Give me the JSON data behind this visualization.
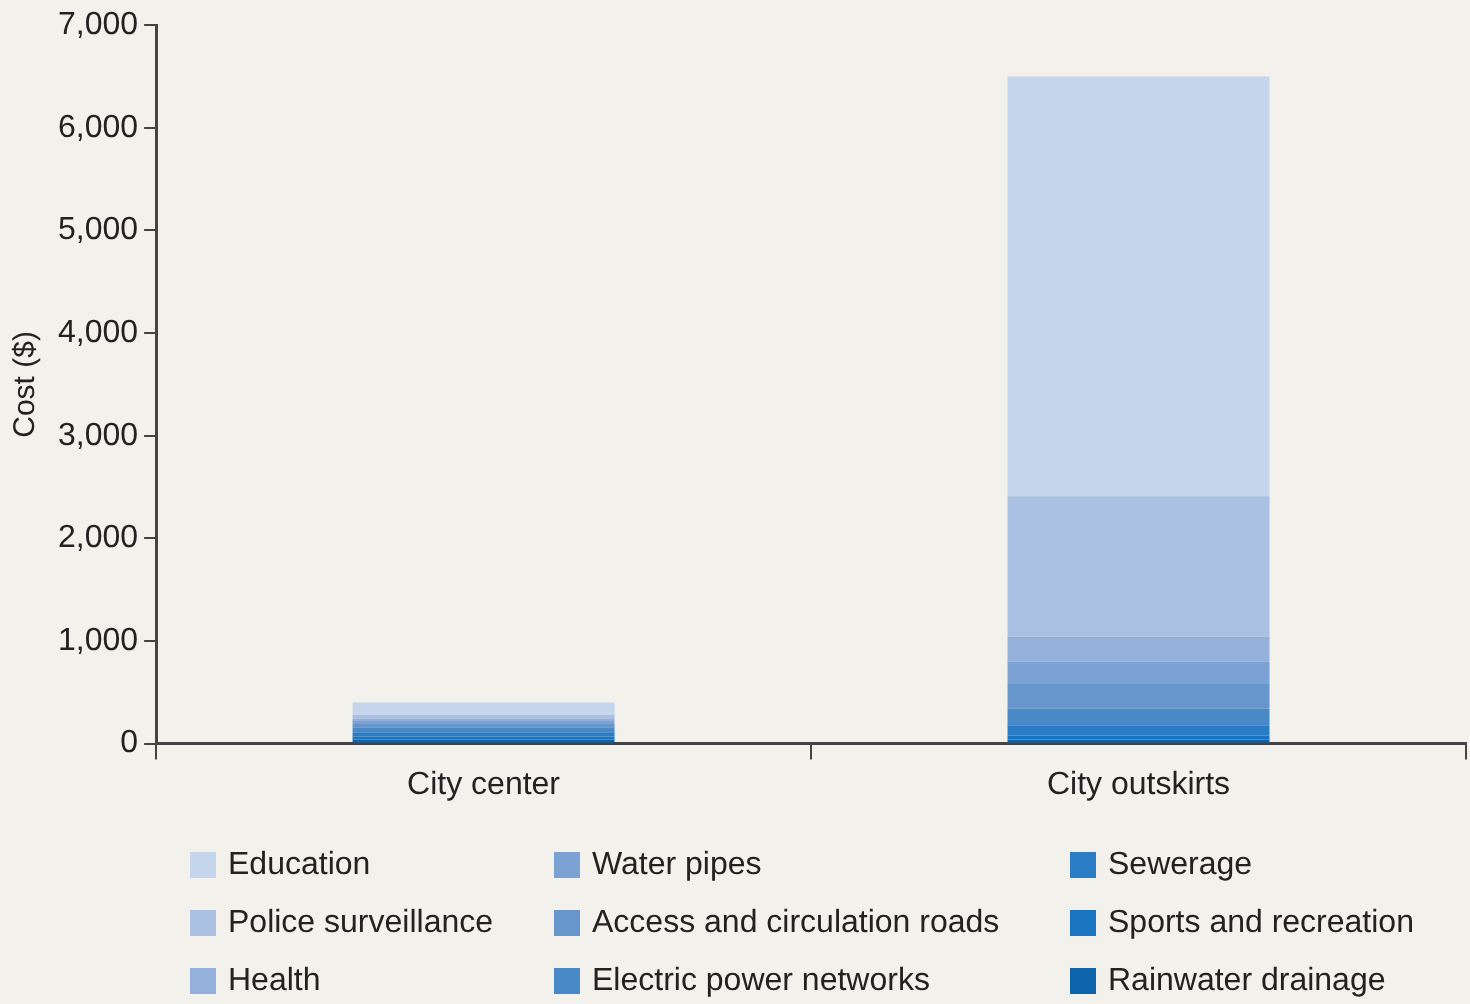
{
  "chart_data": {
    "type": "bar",
    "stacked": true,
    "ylabel": "Cost ($)",
    "categories": [
      "City center",
      "City outskirts"
    ],
    "series": [
      {
        "name": "Rainwater drainage",
        "color": "#0e63ad",
        "values": [
          40,
          40
        ]
      },
      {
        "name": "Sports and recreation",
        "color": "#1a74bf",
        "values": [
          30,
          40
        ]
      },
      {
        "name": "Sewerage",
        "color": "#2a7dc4",
        "values": [
          40,
          100
        ]
      },
      {
        "name": "Electric power networks",
        "color": "#4a89c8",
        "values": [
          50,
          160
        ]
      },
      {
        "name": "Access and circulation roads",
        "color": "#6796cd",
        "values": [
          30,
          240
        ]
      },
      {
        "name": "Water pipes",
        "color": "#7ca2d4",
        "values": [
          30,
          220
        ]
      },
      {
        "name": "Health",
        "color": "#94b1dc",
        "values": [
          20,
          240
        ]
      },
      {
        "name": "Police surveillance",
        "color": "#abc1e3",
        "values": [
          40,
          1370
        ]
      },
      {
        "name": "Education",
        "color": "#c5d5ec",
        "values": [
          120,
          4090
        ]
      }
    ],
    "ylim": [
      0,
      7000
    ],
    "yticks": [
      {
        "value": 0,
        "label": "0"
      },
      {
        "value": 1000,
        "label": "1,000"
      },
      {
        "value": 2000,
        "label": "2,000"
      },
      {
        "value": 3000,
        "label": "3,000"
      },
      {
        "value": 4000,
        "label": "4,000"
      },
      {
        "value": 5000,
        "label": "5,000"
      },
      {
        "value": 6000,
        "label": "6,000"
      },
      {
        "value": 7000,
        "label": "7,000"
      }
    ],
    "grid": false,
    "legend": "bottom"
  }
}
